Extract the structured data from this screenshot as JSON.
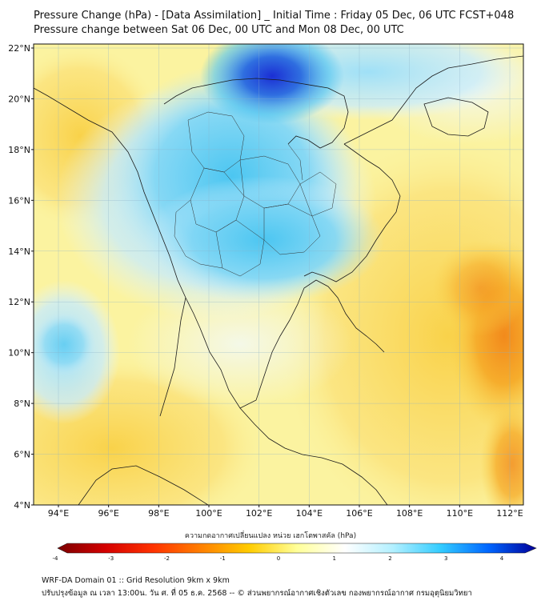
{
  "header": {
    "title_line1": "Pressure Change (hPa) - [Data Assimilation] _ Initial Time : Friday 05 Dec, 06 UTC FCST+048",
    "title_line2": "Pressure change between Sat 06 Dec, 00 UTC and Mon 08 Dec, 00 UTC"
  },
  "map": {
    "lat_labels": [
      "22°N",
      "20°N",
      "18°N",
      "16°N",
      "14°N",
      "12°N",
      "10°N",
      "8°N",
      "6°N",
      "4°N"
    ],
    "lon_labels": [
      "94°E",
      "96°E",
      "98°E",
      "100°E",
      "102°E",
      "104°E",
      "106°E",
      "108°E",
      "110°E",
      "112°E"
    ],
    "field_colors": {
      "strong_negative": "#1b2fd4",
      "negative": "#4fc3f0",
      "slight_negative": "#c9ecfb",
      "near_zero": "#f4f8e8",
      "slight_positive": "#fbf6a6",
      "positive": "#f9d24a",
      "strong_positive": "#f28a1c"
    }
  },
  "colorbar": {
    "label": "ความกดอากาศเปลี่ยนแปลง หน่วย เฮกโตพาสคัล (hPa)",
    "ticks": [
      "-4",
      "-3",
      "-2",
      "-1",
      "0",
      "1",
      "2",
      "3",
      "4"
    ],
    "min": -4,
    "max": 4,
    "colors_low_to_high": [
      "#7a0000",
      "#d40000",
      "#ff3300",
      "#ff8000",
      "#ffcc00",
      "#ffff99",
      "#ffffff",
      "#b3f0ff",
      "#33ccff",
      "#0066ff",
      "#000099"
    ]
  },
  "footer": {
    "line1": "WRF-DA Domain 01 :: Grid Resolution 9km x 9km",
    "line2": "ปรับปรุงข้อมูล ณ เวลา 13:00น. วัน ศ. ที่ 05 ธ.ค. 2568 -- © ส่วนพยากรณ์อากาศเชิงตัวเลข กองพยากรณ์อากาศ กรมอุตุนิยมวิทยา"
  }
}
